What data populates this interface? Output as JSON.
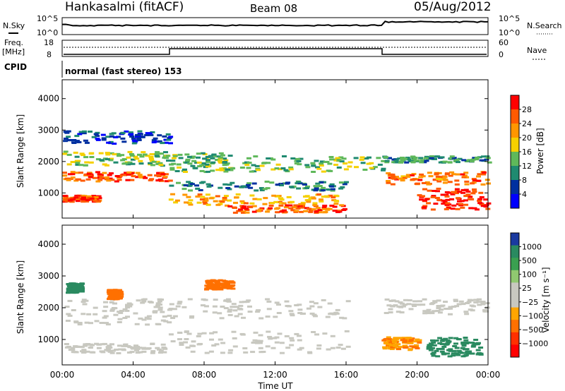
{
  "header": {
    "title": "Hankasalmi (fitACF)",
    "beam": "Beam 08",
    "date": "05/Aug/2012"
  },
  "nsky_panel": {
    "left_label": "N.Sky",
    "right_label": "N.Search",
    "tick_top": "10^5",
    "tick_bottom": "10^0"
  },
  "freq_panel": {
    "left_label": "Freq.",
    "left_unit": "[MHz]",
    "right_label": "Nave",
    "left_ticks": [
      "18",
      "8"
    ],
    "right_ticks": [
      "60",
      "0"
    ]
  },
  "cpid": {
    "label": "CPID",
    "text": "normal (fast stereo) 153"
  },
  "power_panel": {
    "ylabel": "Slant Range [km]",
    "yticks": [
      "4000",
      "3000",
      "2000",
      "1000"
    ],
    "colorbar_label": "Power [dB]",
    "colorbar_ticks": [
      "28",
      "24",
      "20",
      "16",
      "12",
      "8",
      "4"
    ],
    "colorbar_colors": [
      "#ff0000",
      "#ff5a00",
      "#ff9600",
      "#f5d000",
      "#5fb85a",
      "#1f8a70",
      "#0030a0",
      "#0000ff"
    ]
  },
  "velocity_panel": {
    "ylabel": "Slant Range [km]",
    "yticks": [
      "4000",
      "3000",
      "2000",
      "1000"
    ],
    "colorbar_label": "Velocity [m s⁻¹]",
    "colorbar_ticks": [
      "1000",
      "500",
      "100",
      "25",
      "−25",
      "−100",
      "−500",
      "−1000"
    ],
    "colorbar_colors": [
      "#1a3aa0",
      "#2a8a60",
      "#3aa050",
      "#90c870",
      "#c8c8c0",
      "#c8c8c0",
      "#ffa500",
      "#ff7000",
      "#ff3000",
      "#ff0000"
    ]
  },
  "x_axis": {
    "label": "Time UT",
    "ticks": [
      "00:00",
      "04:00",
      "08:00",
      "12:00",
      "16:00",
      "20:00",
      "00:00"
    ]
  },
  "chart_data": {
    "type": "heatmap",
    "title": "Hankasalmi (fitACF) Beam 08 05/Aug/2012",
    "xlabel": "Time UT",
    "ylabel": "Slant Range [km]",
    "xlim_hours": [
      0,
      24
    ],
    "ylim_km": [
      200,
      4600
    ],
    "power_db_range": [
      0,
      30
    ],
    "velocity_range": [
      -1000,
      1000
    ],
    "power_bands": [
      {
        "t_start": 0,
        "t_end": 6,
        "range_km": [
          1400,
          1700
        ],
        "power_db": 26
      },
      {
        "t_start": 0,
        "t_end": 6,
        "range_km": [
          1900,
          2350
        ],
        "power_db": 14
      },
      {
        "t_start": 0,
        "t_end": 6,
        "range_km": [
          2600,
          3000
        ],
        "power_db": 4
      },
      {
        "t_start": 0,
        "t_end": 2,
        "range_km": [
          750,
          950
        ],
        "power_db": 27
      },
      {
        "t_start": 6,
        "t_end": 9.5,
        "range_km": [
          1700,
          2300
        ],
        "power_db": 12
      },
      {
        "t_start": 6,
        "t_end": 15.5,
        "range_km": [
          650,
          1000
        ],
        "power_db": 20
      },
      {
        "t_start": 6,
        "t_end": 16,
        "range_km": [
          1100,
          1400
        ],
        "power_db": 8
      },
      {
        "t_start": 9,
        "t_end": 16,
        "range_km": [
          400,
          650
        ],
        "power_db": 26
      },
      {
        "t_start": 10,
        "t_end": 18,
        "range_km": [
          1700,
          2200
        ],
        "power_db": 12
      },
      {
        "t_start": 18,
        "t_end": 24,
        "range_km": [
          1300,
          1700
        ],
        "power_db": 24
      },
      {
        "t_start": 18,
        "t_end": 24,
        "range_km": [
          2000,
          2200
        ],
        "power_db": 10
      },
      {
        "t_start": 20,
        "t_end": 24,
        "range_km": [
          500,
          1200
        ],
        "power_db": 29
      }
    ],
    "velocity_bands": [
      {
        "t_start": 0,
        "t_end": 6,
        "range_km": [
          1500,
          2300
        ],
        "velocity": 0
      },
      {
        "t_start": 0,
        "t_end": 6,
        "range_km": [
          600,
          900
        ],
        "velocity": 0
      },
      {
        "t_start": 6,
        "t_end": 16,
        "range_km": [
          1700,
          2300
        ],
        "velocity": 0
      },
      {
        "t_start": 6,
        "t_end": 16,
        "range_km": [
          600,
          1300
        ],
        "velocity": 0
      },
      {
        "t_start": 0.2,
        "t_end": 1,
        "range_km": [
          2500,
          2800
        ],
        "velocity": 150
      },
      {
        "t_start": 2.5,
        "t_end": 3.2,
        "range_km": [
          2300,
          2600
        ],
        "velocity": -200
      },
      {
        "t_start": 8,
        "t_end": 9.5,
        "range_km": [
          2600,
          2900
        ],
        "velocity": -300
      },
      {
        "t_start": 18,
        "t_end": 24,
        "range_km": [
          1800,
          2300
        ],
        "velocity": 0
      },
      {
        "t_start": 20.5,
        "t_end": 23.5,
        "range_km": [
          500,
          1100
        ],
        "velocity": 150
      },
      {
        "t_start": 18,
        "t_end": 20,
        "range_km": [
          700,
          1100
        ],
        "velocity": -150
      }
    ],
    "nave_step": [
      {
        "t_start": 0,
        "t_end": 6,
        "value": "low"
      },
      {
        "t_start": 6,
        "t_end": 18,
        "value": "high"
      },
      {
        "t_start": 18,
        "t_end": 24,
        "value": "low"
      }
    ]
  }
}
